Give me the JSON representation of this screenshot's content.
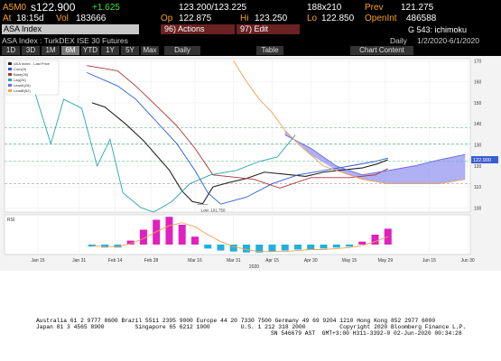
{
  "header": {
    "ticker": "A5M0",
    "last": "s122.900",
    "change": "+1.625",
    "bid_ask": "123.200/123.225",
    "size": "188x210",
    "prev_label": "Prev",
    "prev": "121.275",
    "at_label": "At",
    "time": "18:15d",
    "vol_label": "Vol",
    "vol": "183666",
    "op_label": "Op",
    "op": "122.875",
    "hi_label": "Hi",
    "hi": "123.250",
    "lo_label": "Lo",
    "lo": "122.850",
    "oi_label": "OpenInt",
    "oi": "486588"
  },
  "toolbar": {
    "security": "ASA Index",
    "actions": "96) Actions",
    "edit": "97) Edit",
    "function": "G 543: ichimoku",
    "description": "ASA Index : TurkDEX ISE 30 Futures",
    "period": "Daily",
    "range": "1/2/2020-6/1/2020",
    "buttons": [
      "1D",
      "3D",
      "1M",
      "6M",
      "YTD",
      "1Y",
      "5Y",
      "Max"
    ],
    "frequency": "Daily",
    "table": "Table",
    "content": "Chart Content"
  },
  "chart": {
    "type": "line",
    "xlim": [
      1,
      182
    ],
    "ylim": [
      98,
      171
    ],
    "xticks": [
      {
        "value": 14,
        "label": "Jan 15"
      },
      {
        "value": 30,
        "label": "Jan 31"
      },
      {
        "value": 44,
        "label": "Feb 14"
      },
      {
        "value": 58,
        "label": "Feb 28"
      },
      {
        "value": 75,
        "label": "Mar 16"
      },
      {
        "value": 90,
        "label": "Mar 31"
      },
      {
        "value": 105,
        "label": "Apr 15"
      },
      {
        "value": 120,
        "label": "Apr 30"
      },
      {
        "value": 135,
        "label": "May 15"
      },
      {
        "value": 149,
        "label": "May 29"
      },
      {
        "value": 166,
        "label": "Jun 15"
      },
      {
        "value": 181,
        "label": "Jun 30"
      }
    ],
    "year": "2020",
    "yticks": [
      100,
      110,
      120,
      130,
      140,
      150,
      160,
      170
    ],
    "series": [
      {
        "name": "ASA Index - Last Price",
        "color": "#222222",
        "x": [
          35,
          40,
          48,
          55,
          60,
          65,
          70,
          74,
          78,
          82,
          88,
          95,
          102,
          110,
          118,
          125,
          132,
          140,
          146,
          150
        ],
        "values": [
          150,
          148,
          140,
          132,
          125,
          118,
          108,
          103,
          102,
          110,
          112,
          114,
          117,
          116,
          115,
          117,
          118,
          119,
          121,
          122.9
        ]
      },
      {
        "name": "Conv(9)",
        "color": "#2a5bd7",
        "x": [
          33,
          45,
          52,
          60,
          68,
          75,
          80,
          85,
          95,
          105,
          115,
          125,
          135,
          145,
          150
        ],
        "values": [
          164.4,
          158,
          151.7,
          141.1,
          130.5,
          117.8,
          107.2,
          101.8,
          105.1,
          111.5,
          115.7,
          117.8,
          119.9,
          122.1,
          123.7
        ]
      },
      {
        "name": "Base(26)",
        "color": "#b0303a",
        "x": [
          33,
          45,
          52,
          61,
          68,
          75,
          82,
          98,
          108,
          120,
          135,
          145,
          150
        ],
        "values": [
          167.7,
          165.2,
          158,
          147.4,
          139,
          128.4,
          115.7,
          113.6,
          109.4,
          114.4,
          114.4,
          115.7,
          118.7
        ]
      },
      {
        "name": "Lag(26)",
        "color": "#2aa6a6",
        "x": [
          3,
          12,
          19,
          24,
          31,
          37,
          42,
          47,
          54,
          59,
          66,
          73,
          81,
          91,
          100,
          107,
          114
        ],
        "values": [
          155.9,
          158,
          130.5,
          151.7,
          147.4,
          119.9,
          132.6,
          107.2,
          100.1,
          98,
          103,
          111.5,
          115.7,
          117.8,
          122.1,
          124.2,
          134.7
        ]
      },
      {
        "name": "LeadA(26)",
        "color": "#6a6ae0",
        "x": [
          110,
          120,
          130,
          140,
          150,
          160,
          170,
          180
        ],
        "values": [
          134.7,
          128.4,
          119.9,
          115.7,
          117.8,
          119.9,
          122.9,
          125.4
        ]
      },
      {
        "name": "LeadB(52)",
        "color": "#f0a050",
        "x": [
          90,
          95,
          100,
          105,
          110,
          115,
          125,
          140,
          150,
          160,
          170,
          180
        ],
        "values": [
          170,
          160.1,
          151.7,
          145.3,
          136.9,
          130.5,
          119.9,
          113.6,
          111.5,
          111.5,
          111.5,
          113.6
        ]
      }
    ],
    "cloud_color": "#8f8ff0",
    "levels": [
      138.1,
      130.5,
      122.1,
      111.5
    ],
    "level_color": "#3cb371",
    "last_tag": {
      "value": 122.9,
      "label": "122.900"
    },
    "annotation": {
      "text": "Low: 101.750",
      "value": 101.75
    },
    "rsi": {
      "title": "RSI",
      "ylim": [
        -10,
        30
      ],
      "x": [
        35,
        40,
        45,
        50,
        55,
        60,
        65,
        70,
        75,
        80,
        85,
        90,
        95,
        100,
        105,
        110,
        115,
        120,
        125,
        130,
        135,
        140,
        145,
        150
      ],
      "values": [
        -2,
        -3,
        -3,
        4,
        15,
        25,
        28,
        20,
        8,
        -4,
        -6,
        -7,
        -8,
        -8,
        -7,
        -6,
        -5,
        -5,
        -4,
        -3,
        -2,
        3,
        10,
        16
      ],
      "up_color": "#e020c0",
      "down_color": "#20b0e0",
      "line_color": "#f0a050",
      "line": [
        -1,
        -2,
        -2,
        1,
        6,
        13,
        19,
        22,
        18,
        10,
        3,
        -2,
        -5,
        -7,
        -7,
        -7,
        -6,
        -5,
        -5,
        -4,
        -3,
        -1,
        3,
        8
      ]
    }
  },
  "footer": [
    "Australia 61 2 9777 8600 Brazil 5511 2395 9000 Europe 44 20 7330 7500 Germany 49 69 9204 1210 Hong Kong 852 2977 6000",
    "Japan 81 3 4565 8900         Singapore 65 6212 1000         U.S. 1 212 318 2000          Copyright 2020 Bloomberg Finance L.P.",
    "SN 546679 AST  GMT+3:00 H311-3392-0 02-Jun-2020 00:34:28"
  ]
}
